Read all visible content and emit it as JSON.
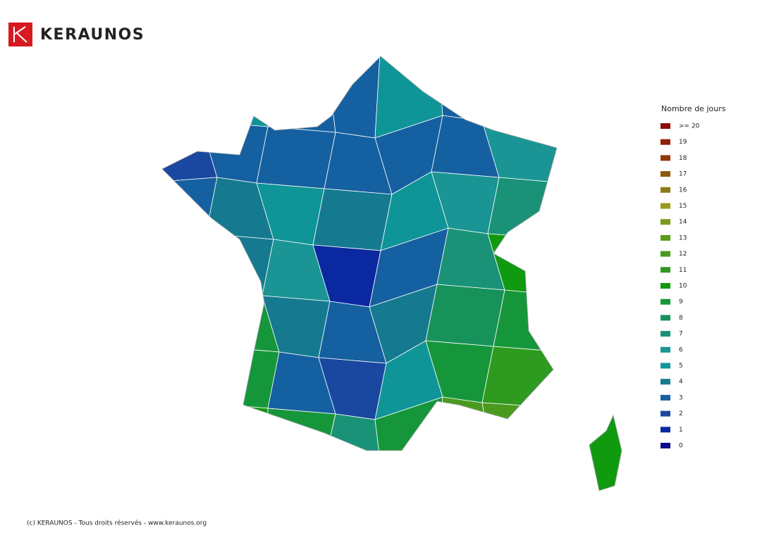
{
  "header": {
    "brand": "KERAUNOS"
  },
  "map": {
    "grid": [
      [
        null,
        5,
        3,
        3,
        5,
        3,
        5
      ],
      [
        2,
        3,
        3,
        3,
        3,
        3,
        6
      ],
      [
        3,
        4,
        5,
        4,
        5,
        6,
        7
      ],
      [
        null,
        4,
        6,
        1,
        3,
        7,
        10
      ],
      [
        null,
        9,
        4,
        3,
        4,
        8,
        9
      ],
      [
        null,
        9,
        3,
        2,
        5,
        9,
        11
      ],
      [
        null,
        10,
        9,
        7,
        9,
        12,
        12
      ]
    ],
    "corsica": 10
  },
  "legend": {
    "title": "Nombre de jours",
    "items": [
      {
        "value": 20,
        "label": ">= 20",
        "color": "#8b0a0a"
      },
      {
        "value": 19,
        "color": "#8f2108"
      },
      {
        "value": 18,
        "color": "#8f3a08"
      },
      {
        "value": 17,
        "color": "#8f5a10"
      },
      {
        "value": 16,
        "color": "#8f7a18"
      },
      {
        "value": 15,
        "color": "#9a9a20"
      },
      {
        "value": 14,
        "color": "#7a9a20"
      },
      {
        "value": 13,
        "color": "#5a9a18"
      },
      {
        "value": 12,
        "color": "#4a9a20"
      },
      {
        "value": 11,
        "color": "#2e9a20"
      },
      {
        "value": 10,
        "color": "#109a10"
      },
      {
        "value": 9,
        "color": "#16963a"
      },
      {
        "value": 8,
        "color": "#17925a"
      },
      {
        "value": 7,
        "color": "#1a9278"
      },
      {
        "value": 6,
        "color": "#1a9494"
      },
      {
        "value": 5,
        "color": "#0f9597"
      },
      {
        "value": 4,
        "color": "#157a90"
      },
      {
        "value": 3,
        "color": "#1560a0"
      },
      {
        "value": 2,
        "color": "#1a48a0"
      },
      {
        "value": 1,
        "color": "#0a28a0"
      },
      {
        "value": 0,
        "color": "#0a0a8a"
      }
    ]
  },
  "footer": "(c) KERAUNOS - Tous droits réservés - www.keraunos.org"
}
